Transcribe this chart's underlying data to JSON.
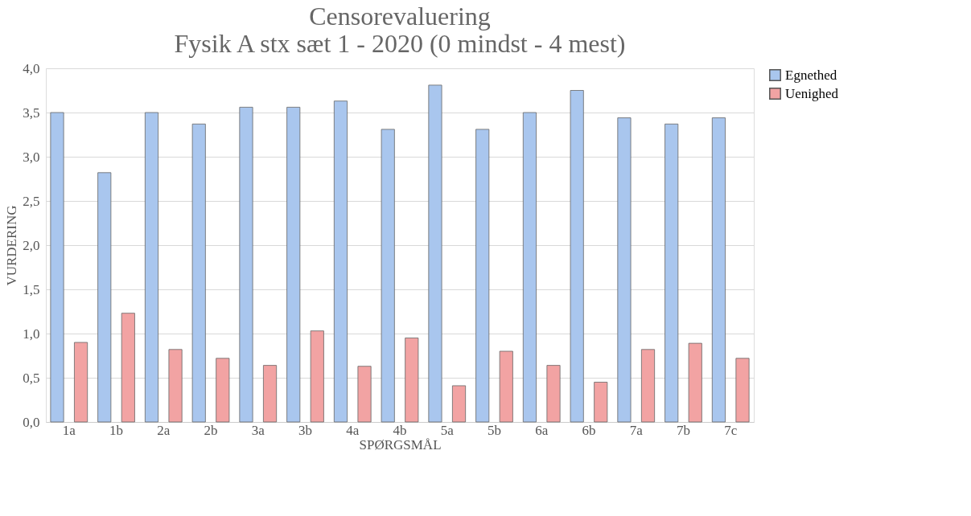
{
  "chart_data": {
    "type": "bar",
    "title": "Censorevaluering\nFysik A stx sæt 1 - 2020 (0 mindst - 4 mest)",
    "xlabel": "SPØRGSMÅL",
    "ylabel": "VURDERING",
    "categories": [
      "1a",
      "1b",
      "2a",
      "2b",
      "3a",
      "3b",
      "4a",
      "4b",
      "5a",
      "5b",
      "6a",
      "6b",
      "7a",
      "7b",
      "7c"
    ],
    "series": [
      {
        "name": "Egnethed",
        "color": "#a9c6ee",
        "values": [
          3.5,
          2.82,
          3.5,
          3.37,
          3.56,
          3.56,
          3.63,
          3.31,
          3.81,
          3.31,
          3.5,
          3.75,
          3.44,
          3.37,
          3.44
        ]
      },
      {
        "name": "Uenighed",
        "color": "#f2a3a3",
        "values": [
          0.9,
          1.23,
          0.82,
          0.72,
          0.64,
          1.03,
          0.63,
          0.95,
          0.41,
          0.8,
          0.64,
          0.45,
          0.82,
          0.89,
          0.72
        ]
      }
    ],
    "ylim": [
      0,
      4
    ],
    "yticks": [
      {
        "value": 0,
        "label": "0,0"
      },
      {
        "value": 0.5,
        "label": "0,5"
      },
      {
        "value": 1,
        "label": "1,0"
      },
      {
        "value": 1.5,
        "label": "1,5"
      },
      {
        "value": 2,
        "label": "2,0"
      },
      {
        "value": 2.5,
        "label": "2,5"
      },
      {
        "value": 3,
        "label": "3,0"
      },
      {
        "value": 3.5,
        "label": "3,5"
      },
      {
        "value": 4,
        "label": "4,0"
      }
    ],
    "grid": "y",
    "legend": "right"
  }
}
